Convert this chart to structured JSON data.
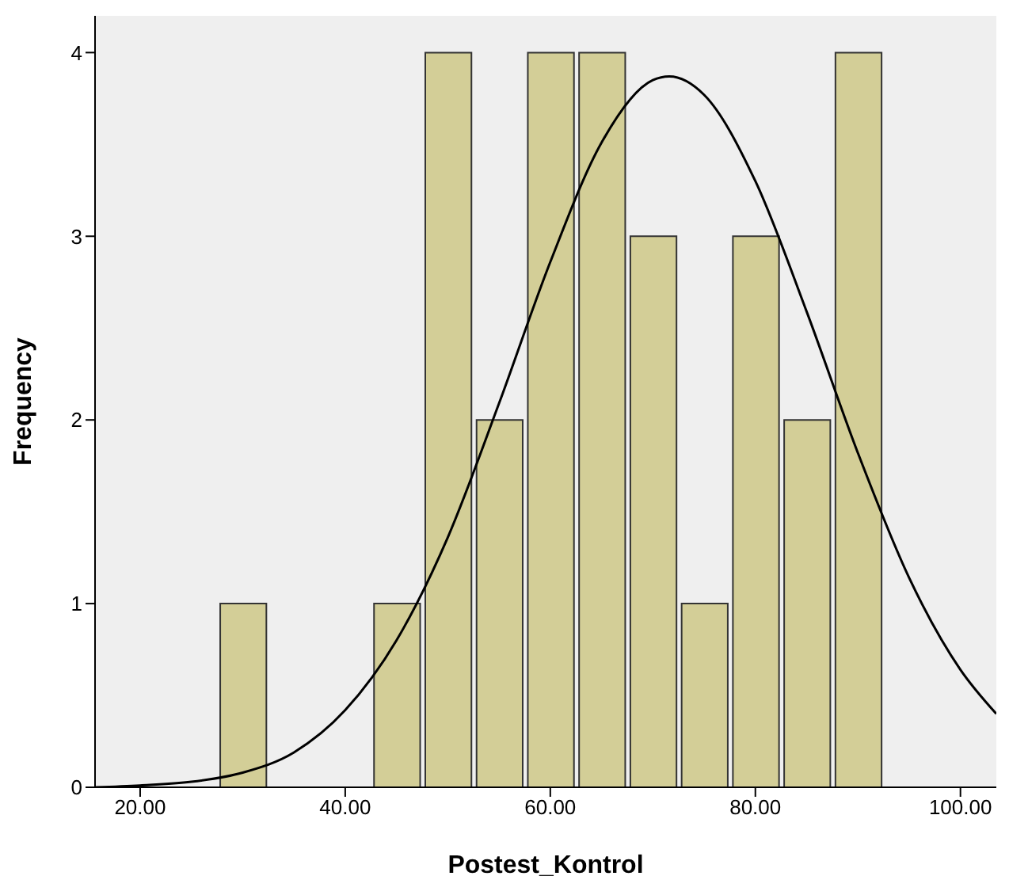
{
  "chart_data": {
    "type": "histogram",
    "xlabel": "Postest_Kontrol",
    "ylabel": "Frequency",
    "series": [
      {
        "color": "#d3ce97",
        "bins": [
          27.5,
          32.5,
          37.5,
          42.5,
          47.5,
          52.5,
          57.5,
          62.5,
          67.5,
          72.5,
          77.5,
          82.5,
          87.5,
          92.5
        ],
        "values": [
          1,
          0,
          0,
          1,
          4,
          2,
          4,
          4,
          3,
          1,
          3,
          2,
          4
        ]
      },
      {
        "type": "line",
        "color": "#000000",
        "x": [
          15.6,
          20,
          25,
          30,
          35,
          40,
          45,
          50,
          55,
          60,
          65,
          70,
          71.6,
          75,
          80,
          85,
          90,
          95,
          100,
          103.5
        ],
        "values": [
          0,
          0.01,
          0.03,
          0.08,
          0.19,
          0.42,
          0.8,
          1.36,
          2.09,
          2.86,
          3.51,
          3.85,
          3.87,
          3.77,
          3.3,
          2.59,
          1.82,
          1.14,
          0.64,
          0.4
        ]
      }
    ],
    "xlim": [
      15.6,
      103.5
    ],
    "ylim": [
      0,
      4.2
    ],
    "xticks": [
      {
        "value": 20,
        "label": "20.00"
      },
      {
        "value": 40,
        "label": "40.00"
      },
      {
        "value": 60,
        "label": "60.00"
      },
      {
        "value": 80,
        "label": "80.00"
      },
      {
        "value": 100,
        "label": "100.00"
      }
    ],
    "yticks": [
      0,
      1,
      2,
      3,
      4
    ],
    "grid": false
  }
}
